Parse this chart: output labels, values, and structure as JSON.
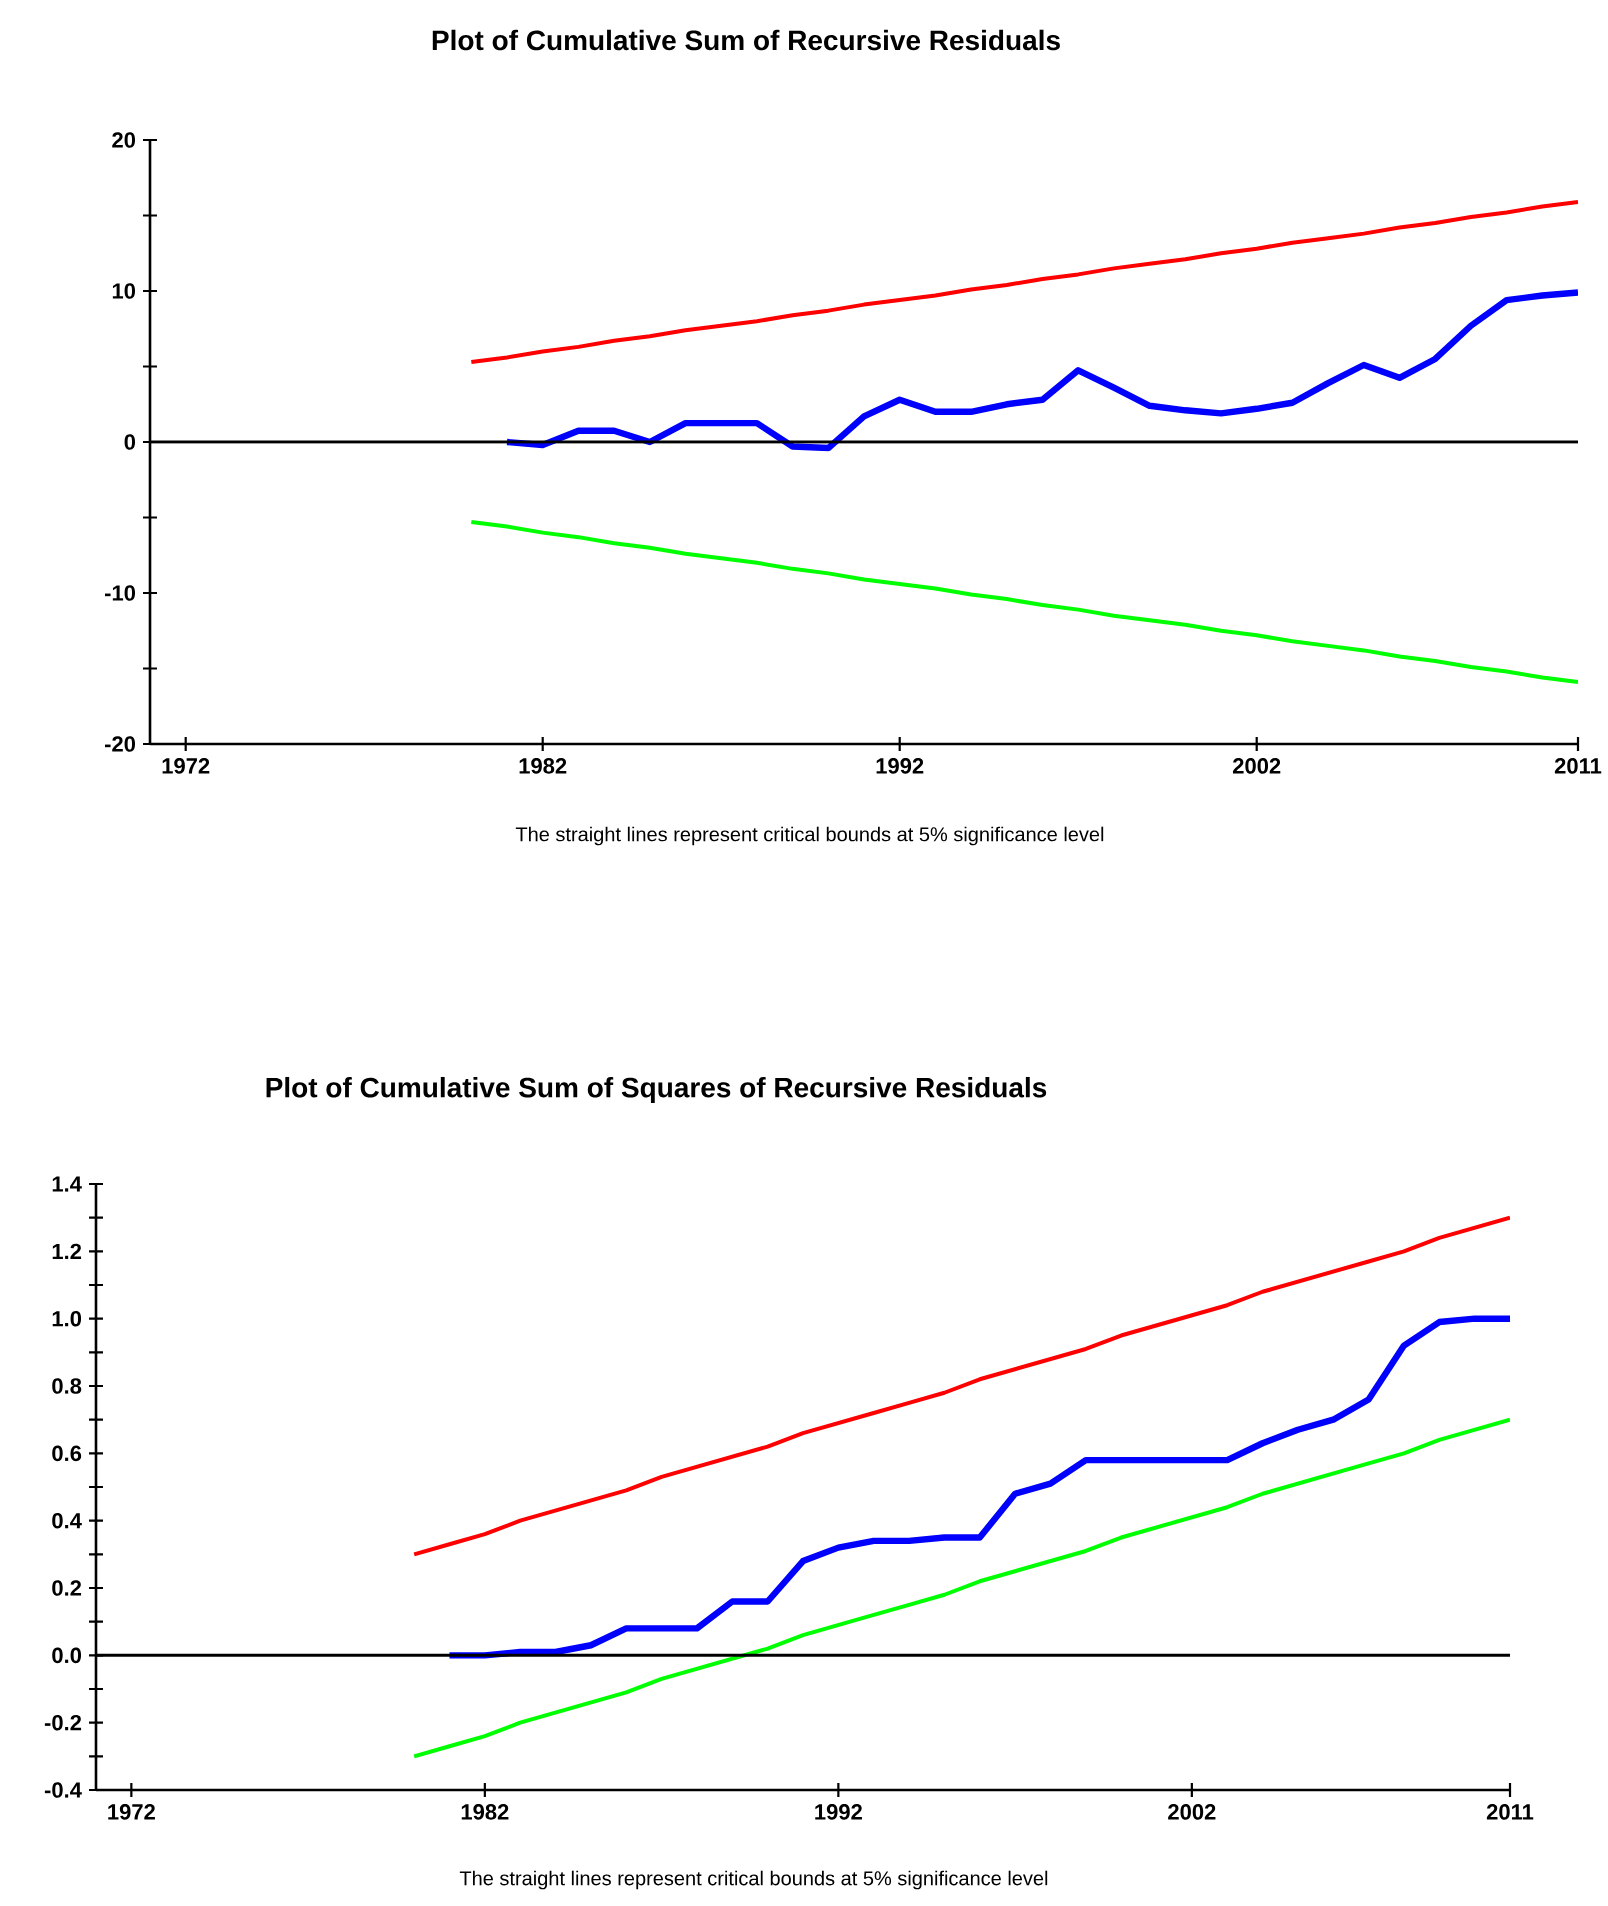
{
  "chart_data": [
    {
      "type": "line",
      "title": "Plot of Cumulative Sum of Recursive Residuals",
      "annotations": [
        "The straight lines represent critical bounds at 5% significance level"
      ],
      "xlim": [
        1971,
        2011
      ],
      "xticks": [
        1972,
        1982,
        1992,
        2002,
        2011
      ],
      "ylim": [
        -20,
        20
      ],
      "yticks": [
        -20,
        {
          "value": -15,
          "label": null
        },
        -10,
        {
          "value": -5,
          "label": null
        },
        0,
        {
          "value": 5,
          "label": null
        },
        10,
        {
          "value": 15,
          "label": null
        },
        20
      ],
      "ref_lines": [
        {
          "axis": "y",
          "value": 0,
          "color": "#000000"
        }
      ],
      "series": [
        {
          "color": "#0000ff",
          "x": [
            1981,
            1982,
            1983,
            1984,
            1985,
            1986,
            1987,
            1988,
            1989,
            1990,
            1991,
            1992,
            1993,
            1994,
            1995,
            1996,
            1997,
            1998,
            1999,
            2000,
            2001,
            2002,
            2003,
            2004,
            2005,
            2006,
            2007,
            2008,
            2009,
            2010,
            2011
          ],
          "values": [
            0,
            -0.2,
            0.75,
            0.75,
            0,
            1.25,
            1.25,
            1.25,
            -0.3,
            -0.4,
            1.7,
            2.8,
            2.0,
            2.0,
            2.5,
            2.8,
            4.75,
            3.6,
            2.4,
            2.1,
            1.9,
            2.2,
            2.6,
            3.9,
            5.1,
            4.25,
            5.5,
            7.7,
            9.4,
            9.7,
            9.9
          ]
        },
        {
          "color": "#ff0000",
          "x": [
            1980,
            1981,
            1982,
            1983,
            1984,
            1985,
            1986,
            1987,
            1988,
            1989,
            1990,
            1991,
            1992,
            1993,
            1994,
            1995,
            1996,
            1997,
            1998,
            1999,
            2000,
            2001,
            2002,
            2003,
            2004,
            2005,
            2006,
            2007,
            2008,
            2009,
            2010,
            2011
          ],
          "values": [
            5.3,
            5.6,
            6.0,
            6.3,
            6.7,
            7.0,
            7.4,
            7.7,
            8.0,
            8.4,
            8.7,
            9.1,
            9.4,
            9.7,
            10.1,
            10.4,
            10.8,
            11.1,
            11.5,
            11.8,
            12.1,
            12.5,
            12.8,
            13.2,
            13.5,
            13.8,
            14.2,
            14.5,
            14.9,
            15.2,
            15.6,
            15.9
          ]
        },
        {
          "color": "#00ff00",
          "x": [
            1980,
            1981,
            1982,
            1983,
            1984,
            1985,
            1986,
            1987,
            1988,
            1989,
            1990,
            1991,
            1992,
            1993,
            1994,
            1995,
            1996,
            1997,
            1998,
            1999,
            2000,
            2001,
            2002,
            2003,
            2004,
            2005,
            2006,
            2007,
            2008,
            2009,
            2010,
            2011
          ],
          "values": [
            -5.3,
            -5.6,
            -6.0,
            -6.3,
            -6.7,
            -7.0,
            -7.4,
            -7.7,
            -8.0,
            -8.4,
            -8.7,
            -9.1,
            -9.4,
            -9.7,
            -10.1,
            -10.4,
            -10.8,
            -11.1,
            -11.5,
            -11.8,
            -12.1,
            -12.5,
            -12.8,
            -13.2,
            -13.5,
            -13.8,
            -14.2,
            -14.5,
            -14.9,
            -15.2,
            -15.6,
            -15.9
          ]
        }
      ]
    },
    {
      "type": "line",
      "title": "Plot of Cumulative Sum of Squares of Recursive Residuals",
      "annotations": [
        "The straight lines represent critical bounds at 5% significance level"
      ],
      "xlim": [
        1971,
        2011
      ],
      "xticks": [
        1972,
        1982,
        1992,
        2002,
        2011
      ],
      "ylim": [
        -0.4,
        1.4
      ],
      "yticks": [
        -0.4,
        {
          "value": -0.3,
          "label": null
        },
        -0.2,
        {
          "value": -0.1,
          "label": null
        },
        {
          "value": 0,
          "label": "0.0"
        },
        {
          "value": 0.1,
          "label": null
        },
        0.2,
        {
          "value": 0.3,
          "label": null
        },
        0.4,
        {
          "value": 0.5,
          "label": null
        },
        0.6,
        {
          "value": 0.7,
          "label": null
        },
        0.8,
        {
          "value": 0.9,
          "label": null
        },
        {
          "value": 1,
          "label": "1.0"
        },
        {
          "value": 1.1,
          "label": null
        },
        1.2,
        {
          "value": 1.3,
          "label": null
        },
        1.4
      ],
      "ref_lines": [
        {
          "axis": "y",
          "value": 0,
          "color": "#000000"
        }
      ],
      "series": [
        {
          "color": "#0000ff",
          "x": [
            1981,
            1982,
            1983,
            1984,
            1985,
            1986,
            1987,
            1988,
            1989,
            1990,
            1991,
            1992,
            1993,
            1994,
            1995,
            1996,
            1997,
            1998,
            1999,
            2000,
            2001,
            2002,
            2003,
            2004,
            2005,
            2006,
            2007,
            2008,
            2009,
            2010,
            2011
          ],
          "values": [
            0,
            0,
            0.01,
            0.01,
            0.03,
            0.08,
            0.08,
            0.08,
            0.16,
            0.16,
            0.28,
            0.32,
            0.34,
            0.34,
            0.35,
            0.35,
            0.48,
            0.51,
            0.58,
            0.58,
            0.58,
            0.58,
            0.58,
            0.63,
            0.67,
            0.7,
            0.76,
            0.92,
            0.99,
            1.0,
            1.0
          ]
        },
        {
          "color": "#ff0000",
          "x": [
            1980,
            1981,
            1982,
            1983,
            1984,
            1985,
            1986,
            1987,
            1988,
            1989,
            1990,
            1991,
            1992,
            1993,
            1994,
            1995,
            1996,
            1997,
            1998,
            1999,
            2000,
            2001,
            2002,
            2003,
            2004,
            2005,
            2006,
            2007,
            2008,
            2009,
            2010,
            2011
          ],
          "values": [
            0.3,
            0.33,
            0.36,
            0.4,
            0.43,
            0.46,
            0.49,
            0.53,
            0.56,
            0.59,
            0.62,
            0.66,
            0.69,
            0.72,
            0.75,
            0.78,
            0.82,
            0.85,
            0.88,
            0.91,
            0.95,
            0.98,
            1.01,
            1.04,
            1.08,
            1.11,
            1.14,
            1.17,
            1.2,
            1.24,
            1.27,
            1.3
          ]
        },
        {
          "color": "#00ff00",
          "x": [
            1980,
            1981,
            1982,
            1983,
            1984,
            1985,
            1986,
            1987,
            1988,
            1989,
            1990,
            1991,
            1992,
            1993,
            1994,
            1995,
            1996,
            1997,
            1998,
            1999,
            2000,
            2001,
            2002,
            2003,
            2004,
            2005,
            2006,
            2007,
            2008,
            2009,
            2010,
            2011
          ],
          "values": [
            -0.3,
            -0.27,
            -0.24,
            -0.2,
            -0.17,
            -0.14,
            -0.11,
            -0.07,
            -0.04,
            -0.01,
            0.02,
            0.06,
            0.09,
            0.12,
            0.15,
            0.18,
            0.22,
            0.25,
            0.28,
            0.31,
            0.35,
            0.38,
            0.41,
            0.44,
            0.48,
            0.51,
            0.54,
            0.57,
            0.6,
            0.64,
            0.67,
            0.7
          ]
        }
      ]
    }
  ]
}
